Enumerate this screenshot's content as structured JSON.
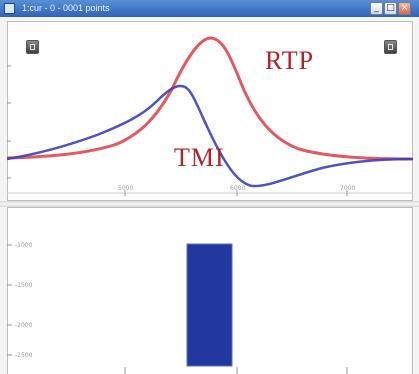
{
  "window": {
    "title": "1:cur - 0 - 0001 points",
    "controls": {
      "minimize": "_",
      "maximize": "□",
      "close": "×"
    }
  },
  "icons": {
    "left_tool": "tool-square-icon",
    "right_tool": "tool-square-icon"
  },
  "top_plot": {
    "labels": {
      "rtp": "RTP",
      "tmi": "TMI"
    },
    "colors": {
      "rtp": "#e0474f",
      "tmi": "#3b3fbf",
      "label": "#b3242a"
    },
    "x_ticks": [
      "5000",
      "6000",
      "7000"
    ],
    "y_ticks": [
      "",
      "",
      "",
      ""
    ]
  },
  "bottom_plot": {
    "y_ticks": [
      "-1000",
      "-1500",
      "-2000",
      "-2500"
    ],
    "x_ticks": [
      "",
      "",
      "",
      ""
    ],
    "bar_color": "#22389e"
  }
}
